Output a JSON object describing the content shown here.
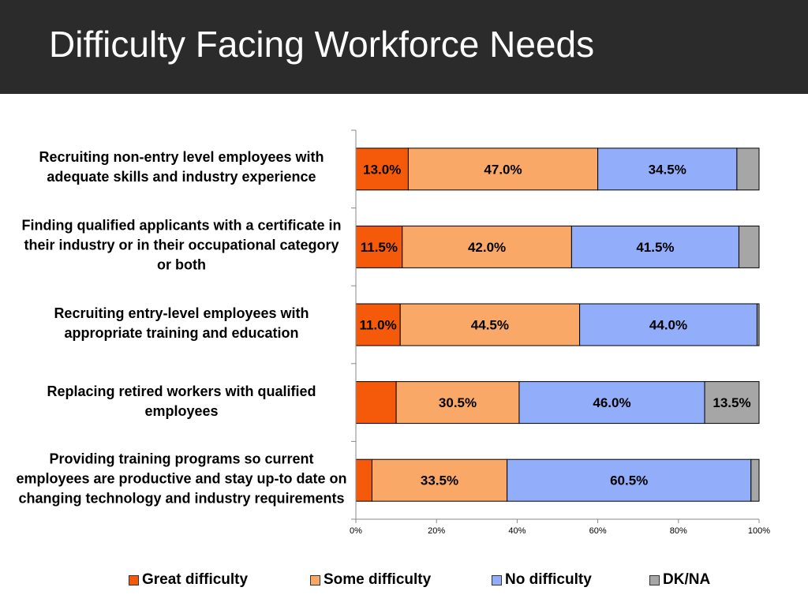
{
  "title": "Difficulty Facing Workforce Needs",
  "chart_data": {
    "type": "bar",
    "orientation": "horizontal",
    "stacked": "percent",
    "categories": [
      "Recruiting non-entry level employees with adequate skills and industry experience",
      "Finding qualified applicants with a certificate in their industry or in their occupational category or both",
      "Recruiting entry-level employees with appropriate training and education",
      "Replacing retired workers with qualified employees",
      "Providing training programs so current employees are productive and stay up-to date on changing technology and industry requirements"
    ],
    "series": [
      {
        "name": "Great difficulty",
        "color": "#f55a0b",
        "values": [
          13.0,
          11.5,
          11.0,
          10.0,
          4.0
        ],
        "labels": [
          "13.0%",
          "11.5%",
          "11.0%",
          "",
          ""
        ]
      },
      {
        "name": "Some difficulty",
        "color": "#f9a868",
        "values": [
          47.0,
          42.0,
          44.5,
          30.5,
          33.5
        ],
        "labels": [
          "47.0%",
          "42.0%",
          "44.5%",
          "30.5%",
          "33.5%"
        ]
      },
      {
        "name": "No difficulty",
        "color": "#92aefa",
        "values": [
          34.5,
          41.5,
          44.0,
          46.0,
          60.5
        ],
        "labels": [
          "34.5%",
          "41.5%",
          "44.0%",
          "46.0%",
          "60.5%"
        ]
      },
      {
        "name": "DK/NA",
        "color": "#a6a6a6",
        "values": [
          5.5,
          5.0,
          0.5,
          13.5,
          2.0
        ],
        "labels": [
          "",
          "",
          "",
          "13.5%",
          ""
        ]
      }
    ],
    "xticks": [
      "0%",
      "20%",
      "40%",
      "60%",
      "80%",
      "100%"
    ],
    "xlim": [
      0,
      100
    ],
    "legend_position": "bottom",
    "grid": false
  }
}
